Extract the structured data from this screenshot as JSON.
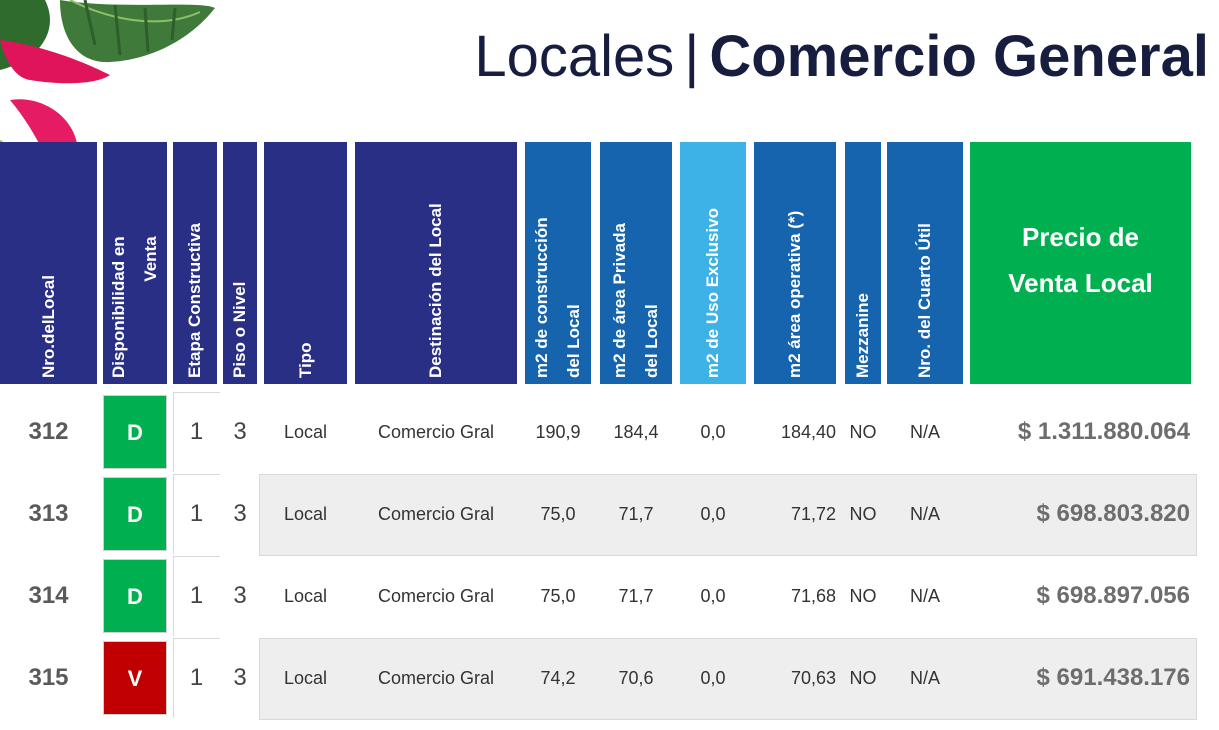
{
  "title": {
    "light": "Locales",
    "separator": "|",
    "bold": "Comercio General"
  },
  "headers": {
    "nro": "Nro.delLocal",
    "disp_1": "Disponibilidad en",
    "disp_2": "Venta",
    "etapa": "Etapa Constructiva",
    "piso": "Piso o Nivel",
    "tipo": "Tipo",
    "destinacion": "Destinación del Local",
    "m2_const_1": "m2 de construcción",
    "m2_const_2": "del Local",
    "m2_priv_1": "m2 de área Privada",
    "m2_priv_2": "del Local",
    "m2_uso": "m2 de Uso Exclusivo",
    "m2_oper": "m2 área operativa (*)",
    "mezz": "Mezzanine",
    "cuarto": "Nro. del Cuarto Útil",
    "precio_1": "Precio de",
    "precio_2": "Venta  Local"
  },
  "colors": {
    "navy": "#2a2f86",
    "blue": "#1764ae",
    "light_blue": "#3cb2e6",
    "green": "#00b050",
    "red": "#c00000",
    "title": "#161d3f"
  },
  "rows": [
    {
      "nro": "312",
      "disp": "D",
      "etapa": "1",
      "piso": "3",
      "tipo": "Local",
      "destinacion": "Comercio Gral",
      "m2_const": "190,9",
      "m2_priv": "184,4",
      "m2_uso": "0,0",
      "m2_oper": "184,40",
      "mezz": "NO",
      "cuarto": "N/A",
      "precio": "$ 1.311.880.064"
    },
    {
      "nro": "313",
      "disp": "D",
      "etapa": "1",
      "piso": "3",
      "tipo": "Local",
      "destinacion": "Comercio Gral",
      "m2_const": "75,0",
      "m2_priv": "71,7",
      "m2_uso": "0,0",
      "m2_oper": "71,72",
      "mezz": "NO",
      "cuarto": "N/A",
      "precio": "$ 698.803.820"
    },
    {
      "nro": "314",
      "disp": "D",
      "etapa": "1",
      "piso": "3",
      "tipo": "Local",
      "destinacion": "Comercio Gral",
      "m2_const": "75,0",
      "m2_priv": "71,7",
      "m2_uso": "0,0",
      "m2_oper": "71,68",
      "mezz": "NO",
      "cuarto": "N/A",
      "precio": "$ 698.897.056"
    },
    {
      "nro": "315",
      "disp": "V",
      "etapa": "1",
      "piso": "3",
      "tipo": "Local",
      "destinacion": "Comercio Gral",
      "m2_const": "74,2",
      "m2_priv": "70,6",
      "m2_uso": "0,0",
      "m2_oper": "70,63",
      "mezz": "NO",
      "cuarto": "N/A",
      "precio": "$ 691.438.176"
    }
  ]
}
